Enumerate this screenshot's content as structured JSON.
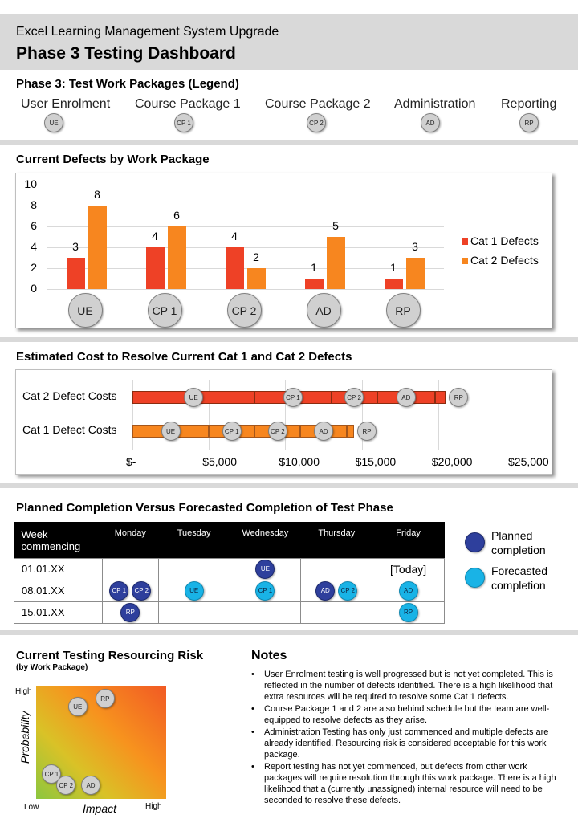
{
  "header": {
    "subtitle": "Excel Learning Management System Upgrade",
    "title": "Phase 3 Testing Dashboard"
  },
  "legend": {
    "title": "Phase 3: Test Work Packages (Legend)",
    "items": [
      {
        "label": "User Enrolment",
        "code": "UE"
      },
      {
        "label": "Course Package 1",
        "code": "CP 1"
      },
      {
        "label": "Course Package 2",
        "code": "CP 2"
      },
      {
        "label": "Administration",
        "code": "AD"
      },
      {
        "label": "Reporting",
        "code": "RP"
      }
    ]
  },
  "colors": {
    "cat1": "#ee4126",
    "cat2": "#f7861f",
    "planned": "#2e3f9c",
    "forecast": "#19b3e6"
  },
  "defects": {
    "title": "Current Defects by Work Package",
    "chart_data": {
      "type": "bar",
      "categories": [
        "UE",
        "CP 1",
        "CP 2",
        "AD",
        "RP"
      ],
      "series": [
        {
          "name": "Cat 1 Defects",
          "values": [
            3,
            4,
            4,
            1,
            1
          ]
        },
        {
          "name": "Cat 2 Defects",
          "values": [
            8,
            6,
            2,
            5,
            3
          ]
        }
      ],
      "yticks": [
        "0",
        "2",
        "4",
        "6",
        "8",
        "10"
      ],
      "ylim": [
        0,
        10
      ],
      "legend_position": "right",
      "grid": true
    }
  },
  "cost": {
    "title": "Estimated Cost to Resolve Current Cat 1 and Cat 2 Defects",
    "chart_data": {
      "type": "bar",
      "orientation": "horizontal-stacked",
      "categories": [
        "Cat 2 Defect Costs",
        "Cat 1 Defect Costs"
      ],
      "xticks": [
        "$-",
        "$5,000",
        "$10,000",
        "$15,000",
        "$20,000",
        "$25,000"
      ],
      "xlim": [
        0,
        25000
      ],
      "series": [
        {
          "code": "UE",
          "values": [
            8000,
            5000
          ]
        },
        {
          "code": "CP 1",
          "values": [
            5000,
            3000
          ]
        },
        {
          "code": "CP 2",
          "values": [
            3000,
            3000
          ]
        },
        {
          "code": "AD",
          "values": [
            3800,
            3000
          ]
        },
        {
          "code": "RP",
          "values": [
            700,
            500
          ]
        }
      ]
    }
  },
  "schedule": {
    "title": "Planned Completion Versus Forecasted Completion of Test Phase",
    "columns": [
      "Week commencing",
      "Monday",
      "Tuesday",
      "Wednesday",
      "Thursday",
      "Friday"
    ],
    "rows": [
      {
        "week": "01.01.XX",
        "planned": {
          "Wednesday": [
            "UE"
          ]
        },
        "forecast": {},
        "text": {
          "Friday": "[Today]"
        }
      },
      {
        "week": "08.01.XX",
        "planned": {
          "Monday": [
            "CP 1",
            "CP 2"
          ],
          "Thursday": [
            "AD"
          ]
        },
        "forecast": {
          "Tuesday": [
            "UE"
          ],
          "Wednesday": [
            "CP 1"
          ],
          "Thursday": [
            "CP 2"
          ],
          "Friday": [
            "AD"
          ]
        },
        "text": {}
      },
      {
        "week": "15.01.XX",
        "planned": {
          "Monday": [
            "RP"
          ]
        },
        "forecast": {
          "Friday": [
            "RP"
          ]
        },
        "text": {}
      }
    ],
    "legend_planned": "Planned completion",
    "legend_forecast": "Forecasted completion"
  },
  "risk": {
    "title": "Current Testing Resourcing Risk",
    "subtitle": "(by Work Package)",
    "y_high": "High",
    "y_label": "Probability",
    "x_low": "Low",
    "x_label": "Impact",
    "x_high": "High",
    "points": [
      {
        "code": "UE",
        "impact": 0.32,
        "probability": 0.82
      },
      {
        "code": "RP",
        "impact": 0.53,
        "probability": 0.89
      },
      {
        "code": "CP 1",
        "impact": 0.12,
        "probability": 0.22
      },
      {
        "code": "CP 2",
        "impact": 0.23,
        "probability": 0.12
      },
      {
        "code": "AD",
        "impact": 0.42,
        "probability": 0.12
      }
    ]
  },
  "notes": {
    "title": "Notes",
    "items": [
      "User Enrolment testing is well progressed but is not yet completed. This is reflected in the number of defects identified. There is a high likelihood that extra resources will be required to resolve some Cat 1 defects.",
      "Course Package 1 and 2 are also behind schedule but the team are well-equipped to resolve defects as they arise.",
      "Administration Testing has only just commenced and multiple defects are already identified. Resourcing risk is considered acceptable for this work package.",
      "Report testing has not yet commenced, but defects from other work packages will require resolution through this work package. There is a high likelihood that a (currently unassigned) internal resource will need to be seconded to resolve these defects."
    ]
  }
}
